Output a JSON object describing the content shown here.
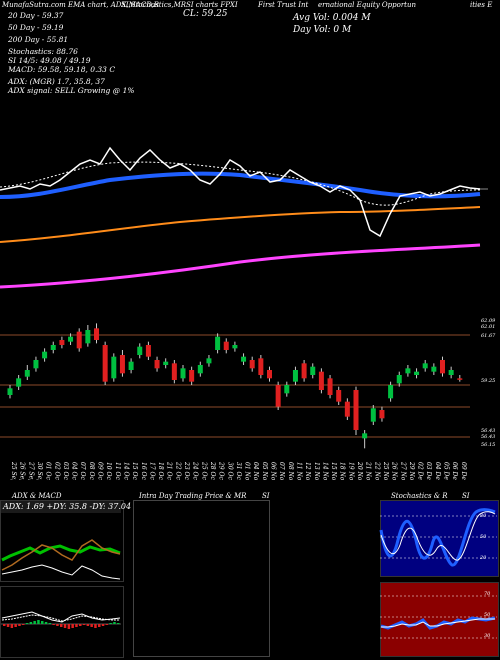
{
  "header": {
    "line1_a": "MunafaSutra.com  EMA chart, ADX,MACD,R",
    "line1_b": "SI,Stochastics,MR",
    "line1_c": "SI charts FPXI",
    "line1_d": "First Trust Int",
    "line1_e": "ernational Equity Opportun",
    "line1_f": "ities E",
    "close_label": "CL: 59.25",
    "avg_vol": "Avg Vol: 0.004  M",
    "day_vol": "Day Vol: 0   M",
    "ema20": "20  Day - 59.37",
    "ema50": "50  Day - 59.19",
    "ema200": "200  Day - 55.81",
    "stoch": "Stochastics: 88.76",
    "rsi": "SI 14/5: 49.08 / 49.19",
    "macd": "MACD: 59.58, 59.18, 0.33  C",
    "adx": "ADX:                         (MGR) 1.7, 35.8, 37",
    "adx_signal": "ADX  signal: SELL Growing @ 1%"
  },
  "panels": {
    "adx_title": "ADX  & MACD",
    "adx_values": "ADX: 1.69  +DY: 35.8  -DY: 37.04",
    "intraday_title": "Intra  Day Trading Price  & MR",
    "intraday_title2": "SI",
    "stoch_title": "Stochastics & R",
    "stoch_title2": "SI"
  },
  "colors": {
    "ema20": "#1f5fff",
    "ema50": "#ff8c1a",
    "ema200": "#ff44ff",
    "price_line": "#ffffff",
    "up": "#00c040",
    "down": "#e02020",
    "navy": "#000080",
    "maroon": "#8b0000"
  },
  "chart_data": {
    "type": "candlestick",
    "price_axis_labels": [
      "62.09",
      "62.01",
      "61.67",
      "59.25",
      "56.43",
      "56.43",
      "56.15"
    ],
    "dates": [
      "25 Sep",
      "26 Sep",
      "27 Sep",
      "30 Sep",
      "01 Oct",
      "02 Oct",
      "03 Oct",
      "04 Oct",
      "07 Oct",
      "08 Oct",
      "09 Oct",
      "10 Oct",
      "11 Oct",
      "14 Oct",
      "15 Oct",
      "16 Oct",
      "17 Oct",
      "18 Oct",
      "21 Oct",
      "22 Oct",
      "23 Oct",
      "24 Oct",
      "25 Oct",
      "28 Oct",
      "29 Oct",
      "30 Oct",
      "31 Oct",
      "01 Nov",
      "04 Nov",
      "05 Nov",
      "06 Nov",
      "07 Nov",
      "08 Nov",
      "11 Nov",
      "12 Nov",
      "13 Nov",
      "14 Nov",
      "15 Nov",
      "18 Nov",
      "19 Nov",
      "20 Nov",
      "21 Nov",
      "22 Nov",
      "25 Nov",
      "26 Nov",
      "27 Nov",
      "29 Nov",
      "02 Dec",
      "03 Dec",
      "04 Dec",
      "05 Dec",
      "06 Dec",
      "09 Dec"
    ],
    "candles": [
      {
        "o": 58.3,
        "c": 58.7,
        "h": 58.9,
        "l": 58.1
      },
      {
        "o": 58.8,
        "c": 59.3,
        "h": 59.5,
        "l": 58.6
      },
      {
        "o": 59.4,
        "c": 59.8,
        "h": 60.1,
        "l": 59.2
      },
      {
        "o": 59.9,
        "c": 60.4,
        "h": 60.6,
        "l": 59.7
      },
      {
        "o": 60.5,
        "c": 60.9,
        "h": 61.1,
        "l": 60.3
      },
      {
        "o": 61.0,
        "c": 61.3,
        "h": 61.5,
        "l": 60.8
      },
      {
        "o": 61.6,
        "c": 61.3,
        "h": 61.8,
        "l": 61.1
      },
      {
        "o": 61.5,
        "c": 61.8,
        "h": 62.0,
        "l": 61.3
      },
      {
        "o": 62.1,
        "c": 61.1,
        "h": 62.3,
        "l": 60.9
      },
      {
        "o": 61.4,
        "c": 62.2,
        "h": 62.5,
        "l": 61.2
      },
      {
        "o": 62.3,
        "c": 61.6,
        "h": 62.6,
        "l": 61.4
      },
      {
        "o": 61.3,
        "c": 59.1,
        "h": 61.5,
        "l": 58.9
      },
      {
        "o": 59.3,
        "c": 60.6,
        "h": 60.8,
        "l": 59.1
      },
      {
        "o": 60.7,
        "c": 59.6,
        "h": 61.0,
        "l": 59.4
      },
      {
        "o": 59.8,
        "c": 60.3,
        "h": 60.5,
        "l": 59.6
      },
      {
        "o": 60.7,
        "c": 61.2,
        "h": 61.4,
        "l": 60.5
      },
      {
        "o": 61.3,
        "c": 60.6,
        "h": 61.5,
        "l": 60.4
      },
      {
        "o": 60.4,
        "c": 59.9,
        "h": 60.6,
        "l": 59.7
      },
      {
        "o": 60.1,
        "c": 60.3,
        "h": 60.5,
        "l": 59.9
      },
      {
        "o": 60.2,
        "c": 59.2,
        "h": 60.4,
        "l": 59.0
      },
      {
        "o": 59.3,
        "c": 59.9,
        "h": 60.1,
        "l": 59.1
      },
      {
        "o": 59.8,
        "c": 59.1,
        "h": 60.0,
        "l": 58.9
      },
      {
        "o": 59.6,
        "c": 60.1,
        "h": 60.3,
        "l": 59.4
      },
      {
        "o": 60.2,
        "c": 60.5,
        "h": 60.7,
        "l": 60.0
      },
      {
        "o": 61.0,
        "c": 61.8,
        "h": 62.0,
        "l": 60.8
      },
      {
        "o": 61.5,
        "c": 61.0,
        "h": 61.7,
        "l": 60.8
      },
      {
        "o": 61.1,
        "c": 61.3,
        "h": 61.5,
        "l": 60.9
      },
      {
        "o": 60.3,
        "c": 60.6,
        "h": 60.8,
        "l": 60.1
      },
      {
        "o": 60.4,
        "c": 59.9,
        "h": 60.6,
        "l": 59.7
      },
      {
        "o": 60.5,
        "c": 59.5,
        "h": 60.7,
        "l": 59.3
      },
      {
        "o": 59.8,
        "c": 59.3,
        "h": 60.0,
        "l": 59.1
      },
      {
        "o": 58.9,
        "c": 57.6,
        "h": 59.1,
        "l": 57.4
      },
      {
        "o": 58.4,
        "c": 58.9,
        "h": 59.1,
        "l": 58.2
      },
      {
        "o": 59.1,
        "c": 59.8,
        "h": 60.0,
        "l": 58.9
      },
      {
        "o": 60.2,
        "c": 59.3,
        "h": 60.4,
        "l": 59.1
      },
      {
        "o": 59.5,
        "c": 60.0,
        "h": 60.2,
        "l": 59.3
      },
      {
        "o": 59.7,
        "c": 58.6,
        "h": 59.9,
        "l": 58.4
      },
      {
        "o": 59.3,
        "c": 58.3,
        "h": 59.5,
        "l": 58.1
      },
      {
        "o": 58.6,
        "c": 57.9,
        "h": 58.8,
        "l": 57.7
      },
      {
        "o": 57.9,
        "c": 57.0,
        "h": 58.1,
        "l": 56.8
      },
      {
        "o": 58.6,
        "c": 56.2,
        "h": 58.8,
        "l": 55.9
      },
      {
        "o": 55.7,
        "c": 56.0,
        "h": 56.2,
        "l": 55.1
      },
      {
        "o": 56.7,
        "c": 57.5,
        "h": 57.7,
        "l": 56.5
      },
      {
        "o": 57.4,
        "c": 56.9,
        "h": 57.6,
        "l": 56.7
      },
      {
        "o": 58.1,
        "c": 58.9,
        "h": 59.1,
        "l": 57.9
      },
      {
        "o": 59.0,
        "c": 59.5,
        "h": 59.7,
        "l": 58.8
      },
      {
        "o": 59.6,
        "c": 59.9,
        "h": 60.1,
        "l": 59.4
      },
      {
        "o": 59.5,
        "c": 59.7,
        "h": 59.9,
        "l": 59.3
      },
      {
        "o": 59.9,
        "c": 60.2,
        "h": 60.4,
        "l": 59.7
      },
      {
        "o": 59.7,
        "c": 60.0,
        "h": 60.2,
        "l": 59.5
      },
      {
        "o": 60.4,
        "c": 59.6,
        "h": 60.6,
        "l": 59.4
      },
      {
        "o": 59.5,
        "c": 59.8,
        "h": 60.0,
        "l": 59.3
      },
      {
        "o": 59.3,
        "c": 59.25,
        "h": 59.5,
        "l": 59.1
      }
    ]
  }
}
